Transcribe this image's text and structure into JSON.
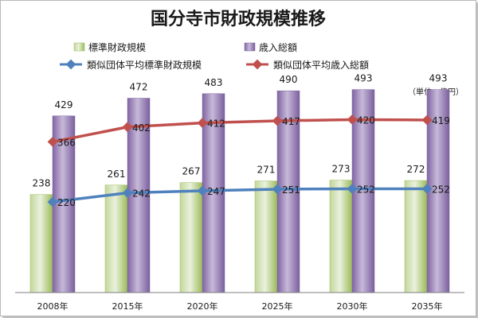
{
  "chart_data": {
    "type": "bar",
    "title": "国分寺市財政規模推移",
    "unit_note": "（単位：億円）",
    "categories": [
      "2008年",
      "2015年",
      "2020年",
      "2025年",
      "2030年",
      "2035年"
    ],
    "series": [
      {
        "name": "標準財政規模",
        "kind": "bar",
        "values": [
          238,
          261,
          267,
          271,
          273,
          272
        ]
      },
      {
        "name": "歳入総額",
        "kind": "bar",
        "values": [
          429,
          472,
          483,
          490,
          493,
          493
        ]
      },
      {
        "name": "類似団体平均標準財政規模",
        "kind": "line",
        "values": [
          220,
          242,
          247,
          251,
          252,
          252
        ]
      },
      {
        "name": "類似団体平均歳入総額",
        "kind": "line",
        "values": [
          366,
          402,
          412,
          417,
          420,
          419
        ]
      }
    ],
    "ylim": [
      0,
      500
    ],
    "grid": false,
    "legend_position": "top",
    "colors": {
      "bar_green": "#9bbb59",
      "bar_purple": "#8064a2",
      "line_blue": "#4f81bd",
      "line_red": "#c0504d"
    }
  }
}
